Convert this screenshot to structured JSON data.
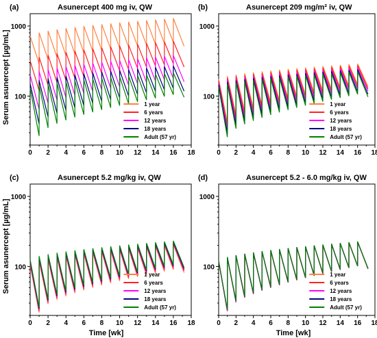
{
  "figure": {
    "ylabel": "Serum asunercept [µg/mL]",
    "xlabel": "Time [wk]"
  },
  "chart_data": [
    {
      "type": "line",
      "panel": "(a)",
      "title": "Asunercept 400 mg iv, QW",
      "x_ticks": [
        "0",
        "2",
        "4",
        "6",
        "8",
        "10",
        "12",
        "14",
        "16",
        "18"
      ],
      "y_ticks": [
        "100",
        "1000"
      ],
      "xlim": [
        0,
        18
      ],
      "ylim": [
        20,
        1500
      ],
      "yscale": "log",
      "legend_position": "bottom-right",
      "dose_interval_wk": 1,
      "n_doses": 17,
      "end_wk": 17.2,
      "series": [
        {
          "name": "1 year",
          "color": "#ff8040",
          "first_peak": 720,
          "first_trough": 290,
          "ss_peak": 1290,
          "ss_trough": 600
        },
        {
          "name": "6 years",
          "color": "#ff2020",
          "first_peak": 320,
          "first_trough": 120,
          "ss_peak": 610,
          "ss_trough": 300
        },
        {
          "name": "12 years",
          "color": "#ff00ff",
          "first_peak": 200,
          "first_trough": 65,
          "ss_peak": 380,
          "ss_trough": 185
        },
        {
          "name": "18 years",
          "color": "#000080",
          "first_peak": 150,
          "first_trough": 40,
          "ss_peak": 270,
          "ss_trough": 135
        },
        {
          "name": "Adult (57 yr)",
          "color": "#008000",
          "first_peak": 130,
          "first_trough": 27,
          "ss_peak": 215,
          "ss_trough": 110
        }
      ]
    },
    {
      "type": "line",
      "panel": "(b)",
      "title": "Asunercept 209 mg/m² iv, QW",
      "x_ticks": [
        "0",
        "2",
        "4",
        "6",
        "8",
        "10",
        "12",
        "14",
        "16",
        "18"
      ],
      "y_ticks": [
        "100",
        "1000"
      ],
      "xlim": [
        0,
        18
      ],
      "ylim": [
        20,
        1500
      ],
      "yscale": "log",
      "legend_position": "bottom-right",
      "dose_interval_wk": 1,
      "n_doses": 17,
      "end_wk": 17.2,
      "series": [
        {
          "name": "1 year",
          "color": "#ff8040",
          "first_peak": 175,
          "first_trough": 42,
          "ss_peak": 290,
          "ss_trough": 155
        },
        {
          "name": "6 years",
          "color": "#ff2020",
          "first_peak": 165,
          "first_trough": 38,
          "ss_peak": 275,
          "ss_trough": 145
        },
        {
          "name": "12 years",
          "color": "#ff00ff",
          "first_peak": 155,
          "first_trough": 33,
          "ss_peak": 255,
          "ss_trough": 135
        },
        {
          "name": "18 years",
          "color": "#000080",
          "first_peak": 145,
          "first_trough": 29,
          "ss_peak": 240,
          "ss_trough": 122
        },
        {
          "name": "Adult (57 yr)",
          "color": "#008000",
          "first_peak": 135,
          "first_trough": 26,
          "ss_peak": 225,
          "ss_trough": 112
        }
      ]
    },
    {
      "type": "line",
      "panel": "(c)",
      "title": "Asunercept 5.2 mg/kg iv, QW",
      "x_ticks": [
        "0",
        "2",
        "4",
        "6",
        "8",
        "10",
        "12",
        "14",
        "16",
        "18"
      ],
      "y_ticks": [
        "100",
        "1000"
      ],
      "xlim": [
        0,
        18
      ],
      "ylim": [
        20,
        1500
      ],
      "yscale": "log",
      "legend_position": "bottom-right",
      "dose_interval_wk": 1,
      "n_doses": 17,
      "end_wk": 17.2,
      "series": [
        {
          "name": "1 year",
          "color": "#ff8040",
          "first_peak": 105,
          "first_trough": 22,
          "ss_peak": 205,
          "ss_trough": 95
        },
        {
          "name": "6 years",
          "color": "#ff2020",
          "first_peak": 110,
          "first_trough": 23,
          "ss_peak": 212,
          "ss_trough": 100
        },
        {
          "name": "12 years",
          "color": "#ff00ff",
          "first_peak": 115,
          "first_trough": 24,
          "ss_peak": 218,
          "ss_trough": 104
        },
        {
          "name": "18 years",
          "color": "#000080",
          "first_peak": 120,
          "first_trough": 25,
          "ss_peak": 224,
          "ss_trough": 108
        },
        {
          "name": "Adult (57 yr)",
          "color": "#008000",
          "first_peak": 125,
          "first_trough": 26,
          "ss_peak": 232,
          "ss_trough": 112
        }
      ]
    },
    {
      "type": "line",
      "panel": "(d)",
      "title": "Asunercept 5.2 - 6.0 mg/kg iv, QW",
      "x_ticks": [
        "0",
        "2",
        "4",
        "6",
        "8",
        "10",
        "12",
        "14",
        "16",
        "18"
      ],
      "y_ticks": [
        "100",
        "1000"
      ],
      "xlim": [
        0,
        18
      ],
      "ylim": [
        20,
        1500
      ],
      "yscale": "log",
      "legend_position": "bottom-right",
      "dose_interval_wk": 1,
      "n_doses": 17,
      "end_wk": 17.2,
      "series": [
        {
          "name": "1 year",
          "color": "#ff8040",
          "first_peak": 118,
          "first_trough": 23,
          "ss_peak": 225,
          "ss_trough": 108
        },
        {
          "name": "6 years",
          "color": "#ff2020",
          "first_peak": 118,
          "first_trough": 23,
          "ss_peak": 224,
          "ss_trough": 107
        },
        {
          "name": "12 years",
          "color": "#ff00ff",
          "first_peak": 119,
          "first_trough": 23,
          "ss_peak": 225,
          "ss_trough": 108
        },
        {
          "name": "18 years",
          "color": "#000080",
          "first_peak": 120,
          "first_trough": 24,
          "ss_peak": 226,
          "ss_trough": 108
        },
        {
          "name": "Adult (57 yr)",
          "color": "#008000",
          "first_peak": 121,
          "first_trough": 24,
          "ss_peak": 227,
          "ss_trough": 109
        }
      ]
    }
  ]
}
